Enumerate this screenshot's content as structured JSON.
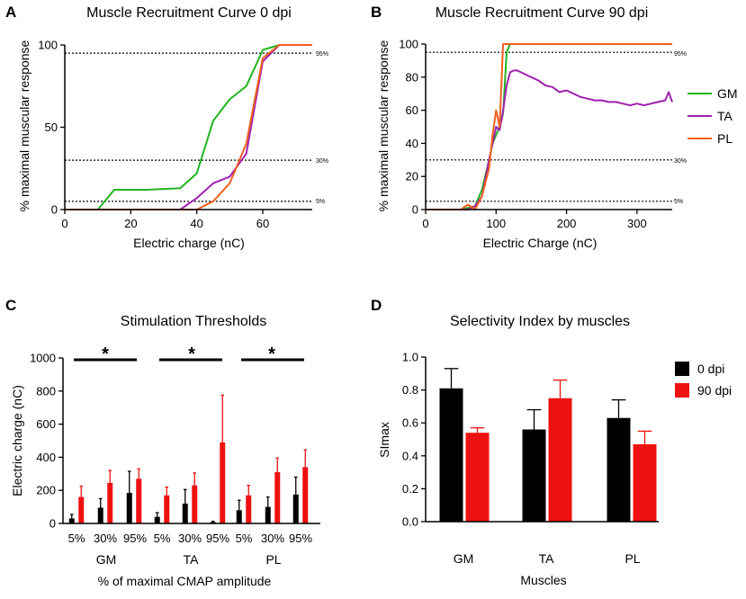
{
  "colors": {
    "gm": "#22b422",
    "ta": "#a020b0",
    "pl": "#f06020",
    "dpi0": "#000000",
    "dpi90": "#ee1111"
  },
  "panels": {
    "A": {
      "letter": "A",
      "title": "Muscle Recruitment Curve 0 dpi",
      "xlabel": "Electric charge (nC)",
      "ylabel": "% maximal muscular response",
      "xticks": [
        "0",
        "20",
        "40",
        "60"
      ],
      "yticks": [
        "0",
        "50",
        "100"
      ],
      "ref_labels": [
        "95%",
        "30%",
        "5%"
      ]
    },
    "B": {
      "letter": "B",
      "title": "Muscle Recruitment Curve 90 dpi",
      "xlabel": "Electric Charge (nC)",
      "ylabel": "% maximal muscular response",
      "xticks": [
        "0",
        "100",
        "200",
        "300"
      ],
      "yticks": [
        "0",
        "20",
        "40",
        "60",
        "80",
        "100"
      ],
      "ref_labels": [
        "95%",
        "30%",
        "5%"
      ],
      "legend": [
        "GM",
        "TA",
        "PL"
      ]
    },
    "C": {
      "letter": "C",
      "title": "Stimulation Thresholds",
      "xlabel": "% of maximal CMAP amplitude",
      "ylabel": "Electric charge (nC)",
      "yticks": [
        "0",
        "200",
        "400",
        "600",
        "800",
        "1000"
      ],
      "muscles": [
        "GM",
        "TA",
        "PL"
      ],
      "thresholds": [
        "5%",
        "30%",
        "95%"
      ],
      "star": "*"
    },
    "D": {
      "letter": "D",
      "title": "Selectivity Index by muscles",
      "xlabel": "Muscles",
      "ylabel": "SImax",
      "yticks": [
        "0.0",
        "0.2",
        "0.4",
        "0.6",
        "0.8",
        "1.0"
      ],
      "categories": [
        "GM",
        "TA",
        "PL"
      ],
      "legend": [
        "0 dpi",
        "90 dpi"
      ]
    }
  },
  "chart_data": [
    {
      "type": "line",
      "title": "Muscle Recruitment Curve 0 dpi",
      "xlabel": "Electric charge (nC)",
      "ylabel": "% maximal muscular response",
      "xlim": [
        0,
        75
      ],
      "ylim": [
        0,
        100
      ],
      "reference_lines": [
        95,
        30,
        5
      ],
      "series": [
        {
          "name": "GM",
          "x": [
            0,
            10,
            15,
            25,
            35,
            40,
            45,
            50,
            55,
            60,
            65,
            70,
            75
          ],
          "y": [
            0,
            0,
            12,
            12,
            13,
            22,
            54,
            67,
            75,
            97,
            100,
            100,
            100
          ]
        },
        {
          "name": "TA",
          "x": [
            0,
            35,
            40,
            45,
            50,
            55,
            60,
            65,
            70,
            75
          ],
          "y": [
            0,
            0,
            7,
            16,
            20,
            34,
            90,
            100,
            100,
            100
          ]
        },
        {
          "name": "PL",
          "x": [
            0,
            40,
            45,
            50,
            55,
            60,
            65,
            70,
            75
          ],
          "y": [
            0,
            0,
            5,
            16,
            40,
            92,
            100,
            100,
            100
          ]
        }
      ]
    },
    {
      "type": "line",
      "title": "Muscle Recruitment Curve 90 dpi",
      "xlabel": "Electric Charge (nC)",
      "ylabel": "% maximal muscular response",
      "xlim": [
        0,
        350
      ],
      "ylim": [
        0,
        100
      ],
      "reference_lines": [
        95,
        30,
        5
      ],
      "series": [
        {
          "name": "GM",
          "x": [
            0,
            50,
            70,
            80,
            90,
            95,
            100,
            105,
            110,
            115,
            120,
            350
          ],
          "y": [
            0,
            0,
            2,
            12,
            30,
            40,
            45,
            50,
            58,
            95,
            100,
            100
          ]
        },
        {
          "name": "TA",
          "x": [
            0,
            60,
            70,
            80,
            90,
            95,
            100,
            105,
            110,
            115,
            120,
            125,
            130,
            140,
            150,
            160,
            170,
            180,
            190,
            200,
            210,
            220,
            230,
            240,
            250,
            260,
            270,
            280,
            290,
            300,
            310,
            320,
            330,
            340,
            345,
            350
          ],
          "y": [
            0,
            0,
            2,
            8,
            30,
            40,
            50,
            48,
            60,
            75,
            83,
            84,
            84,
            82,
            80,
            78,
            75,
            74,
            71,
            72,
            70,
            68,
            67,
            66,
            66,
            65,
            65,
            64,
            63,
            64,
            63,
            64,
            65,
            66,
            71,
            65
          ]
        },
        {
          "name": "PL",
          "x": [
            0,
            50,
            60,
            70,
            80,
            90,
            95,
            100,
            105,
            110,
            115,
            350
          ],
          "y": [
            0,
            0,
            3,
            0,
            8,
            25,
            45,
            60,
            50,
            100,
            100,
            100
          ]
        }
      ]
    },
    {
      "type": "bar",
      "title": "Stimulation Thresholds",
      "xlabel": "% of maximal CMAP amplitude",
      "ylabel": "Electric charge (nC)",
      "ylim": [
        0,
        1000
      ],
      "categories": [
        "GM 5%",
        "GM 30%",
        "GM 95%",
        "TA 5%",
        "TA 30%",
        "TA 95%",
        "PL 5%",
        "PL 30%",
        "PL 95%"
      ],
      "series": [
        {
          "name": "0 dpi",
          "values": [
            30,
            95,
            185,
            40,
            120,
            8,
            80,
            100,
            175
          ],
          "errors": [
            25,
            55,
            130,
            25,
            85,
            5,
            60,
            60,
            105
          ]
        },
        {
          "name": "90 dpi",
          "values": [
            160,
            245,
            270,
            170,
            230,
            490,
            170,
            310,
            340
          ],
          "errors": [
            65,
            75,
            60,
            50,
            75,
            285,
            60,
            85,
            105
          ]
        }
      ],
      "significance": [
        "GM",
        "TA",
        "PL"
      ]
    },
    {
      "type": "bar",
      "title": "Selectivity Index by muscles",
      "xlabel": "Muscles",
      "ylabel": "SImax",
      "ylim": [
        0,
        1
      ],
      "categories": [
        "GM",
        "TA",
        "PL"
      ],
      "series": [
        {
          "name": "0 dpi",
          "values": [
            0.81,
            0.56,
            0.63
          ],
          "errors": [
            0.12,
            0.12,
            0.11
          ]
        },
        {
          "name": "90 dpi",
          "values": [
            0.54,
            0.75,
            0.47
          ],
          "errors": [
            0.03,
            0.11,
            0.08
          ]
        }
      ]
    }
  ]
}
